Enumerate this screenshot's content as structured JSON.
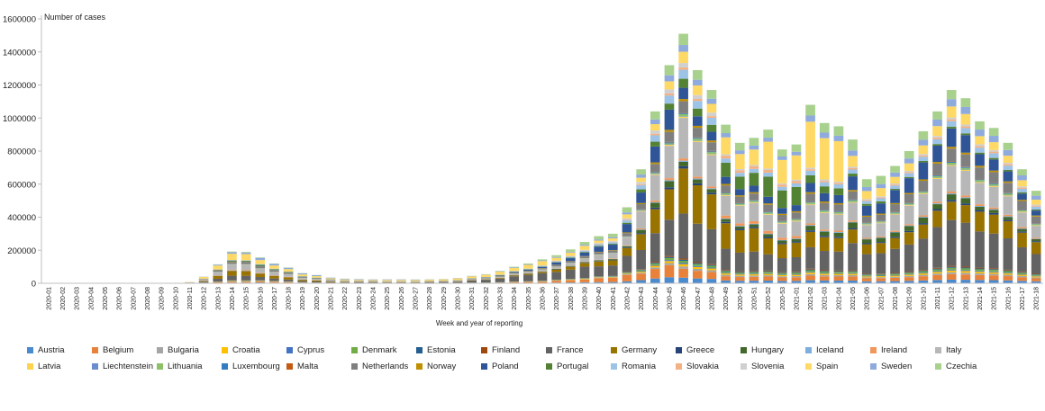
{
  "chart_data": {
    "type": "bar",
    "stacked": true,
    "ylabel": "Number of cases",
    "xlabel": "Week and year of reporting",
    "ylim": [
      0,
      1600000
    ],
    "yticks": [
      0,
      200000,
      400000,
      600000,
      800000,
      1000000,
      1200000,
      1400000,
      1600000
    ],
    "ytick_labels": [
      "0",
      "200000",
      "400000",
      "600000",
      "800000",
      "1000000",
      "1200000",
      "1400000",
      "1600000"
    ],
    "legend_position": "bottom",
    "grid": false,
    "categories": [
      "2020-01",
      "2020-02",
      "2020-03",
      "2020-04",
      "2020-05",
      "2020-06",
      "2020-07",
      "2020-08",
      "2020-09",
      "2020-10",
      "2020-11",
      "2020-12",
      "2020-13",
      "2020-14",
      "2020-15",
      "2020-16",
      "2020-17",
      "2020-18",
      "2020-19",
      "2020-20",
      "2020-21",
      "2020-22",
      "2020-23",
      "2020-24",
      "2020-25",
      "2020-26",
      "2020-27",
      "2020-28",
      "2020-29",
      "2020-30",
      "2020-31",
      "2020-32",
      "2020-33",
      "2020-34",
      "2020-35",
      "2020-36",
      "2020-37",
      "2020-38",
      "2020-39",
      "2020-40",
      "2020-41",
      "2020-42",
      "2020-43",
      "2020-44",
      "2020-45",
      "2020-46",
      "2020-47",
      "2020-48",
      "2020-49",
      "2020-50",
      "2020-51",
      "2020-52",
      "2020-53",
      "2021-01",
      "2021-02",
      "2021-03",
      "2021-04",
      "2021-05",
      "2021-06",
      "2021-07",
      "2021-08",
      "2021-09",
      "2021-10",
      "2021-11",
      "2021-12",
      "2021-13",
      "2021-14",
      "2021-15",
      "2021-16",
      "2021-17",
      "2021-18"
    ],
    "totals": [
      0,
      0,
      0,
      0,
      0,
      0,
      0,
      0,
      0,
      0,
      8000,
      40000,
      115000,
      192000,
      190000,
      157000,
      120000,
      96000,
      62000,
      50000,
      35000,
      28000,
      25000,
      24000,
      24000,
      24000,
      23000,
      24000,
      26000,
      32000,
      45000,
      55000,
      75000,
      100000,
      120000,
      145000,
      170000,
      205000,
      250000,
      285000,
      300000,
      460000,
      690000,
      1040000,
      1320000,
      1510000,
      1290000,
      1170000,
      960000,
      850000,
      880000,
      930000,
      810000,
      840000,
      1080000,
      970000,
      950000,
      870000,
      630000,
      650000,
      710000,
      800000,
      920000,
      1040000,
      1170000,
      1120000,
      980000,
      940000,
      850000,
      690000,
      560000
    ],
    "series": [
      {
        "name": "Austria",
        "color": "#4a8bd0",
        "shares": [
          0.02,
          0.02,
          0.03,
          0.02,
          0.03,
          0.02,
          0.02,
          0.02,
          0.02,
          0.03,
          0.03,
          0.03,
          0.025,
          0.02,
          0.02,
          0.02,
          0.02,
          0.02,
          0.02,
          0.02,
          0.02
        ]
      },
      {
        "name": "Belgium",
        "color": "#e8823a",
        "shares": [
          0.03,
          0.03,
          0.04,
          0.03,
          0.03,
          0.03,
          0.03,
          0.03,
          0.05,
          0.08,
          0.1,
          0.06,
          0.04,
          0.03,
          0.03,
          0.03,
          0.03,
          0.03,
          0.03,
          0.03,
          0.03
        ]
      },
      {
        "name": "Bulgaria",
        "color": "#a5a5a5",
        "shares": [
          0.01,
          0.01,
          0.01,
          0.01,
          0.01,
          0.01,
          0.01,
          0.01,
          0.01,
          0.01,
          0.01,
          0.01,
          0.01,
          0.01,
          0.01,
          0.01,
          0.01,
          0.01,
          0.01,
          0.01,
          0.01
        ]
      },
      {
        "name": "Croatia",
        "color": "#ffc000",
        "shares": [
          0.01,
          0.01,
          0.01,
          0.01,
          0.01,
          0.01,
          0.01,
          0.01,
          0.01,
          0.01,
          0.01,
          0.01,
          0.01,
          0.01,
          0.01,
          0.01,
          0.01,
          0.01,
          0.01,
          0.01,
          0.01
        ]
      },
      {
        "name": "Cyprus",
        "color": "#4472c4",
        "shares": [
          0.005,
          0.005,
          0.005,
          0.005,
          0.005,
          0.005,
          0.005,
          0.005,
          0.005,
          0.005,
          0.005,
          0.005,
          0.005,
          0.005,
          0.005,
          0.005,
          0.005,
          0.005,
          0.005,
          0.005,
          0.005
        ]
      },
      {
        "name": "Denmark",
        "color": "#70ad47",
        "shares": [
          0.01,
          0.01,
          0.01,
          0.01,
          0.01,
          0.01,
          0.01,
          0.01,
          0.01,
          0.01,
          0.01,
          0.01,
          0.01,
          0.01,
          0.01,
          0.01,
          0.01,
          0.01,
          0.01,
          0.01,
          0.01
        ]
      },
      {
        "name": "Estonia",
        "color": "#255e91",
        "shares": [
          0.005,
          0.005,
          0.005,
          0.005,
          0.005,
          0.005,
          0.005,
          0.005,
          0.005,
          0.005,
          0.005,
          0.005,
          0.005,
          0.005,
          0.005,
          0.005,
          0.005,
          0.005,
          0.005,
          0.005,
          0.005
        ]
      },
      {
        "name": "Finland",
        "color": "#9e480e",
        "shares": [
          0.005,
          0.005,
          0.005,
          0.005,
          0.005,
          0.005,
          0.005,
          0.005,
          0.005,
          0.005,
          0.005,
          0.005,
          0.005,
          0.005,
          0.005,
          0.005,
          0.005,
          0.005,
          0.005,
          0.005,
          0.005
        ]
      },
      {
        "name": "France",
        "color": "#636363",
        "shares": [
          0.15,
          0.15,
          0.12,
          0.1,
          0.1,
          0.1,
          0.2,
          0.3,
          0.35,
          0.33,
          0.25,
          0.18,
          0.2,
          0.15,
          0.12,
          0.14,
          0.2,
          0.22,
          0.25,
          0.22,
          0.2
        ]
      },
      {
        "name": "Germany",
        "color": "#997300",
        "shares": [
          0.12,
          0.15,
          0.12,
          0.1,
          0.08,
          0.06,
          0.06,
          0.05,
          0.06,
          0.1,
          0.12,
          0.15,
          0.2,
          0.18,
          0.12,
          0.1,
          0.1,
          0.1,
          0.1,
          0.12,
          0.12
        ]
      },
      {
        "name": "Greece",
        "color": "#264478",
        "shares": [
          0.005,
          0.005,
          0.005,
          0.005,
          0.005,
          0.005,
          0.005,
          0.005,
          0.01,
          0.01,
          0.01,
          0.01,
          0.01,
          0.01,
          0.01,
          0.01,
          0.01,
          0.01,
          0.01,
          0.01,
          0.01
        ]
      },
      {
        "name": "Hungary",
        "color": "#43682b",
        "shares": [
          0.005,
          0.005,
          0.005,
          0.005,
          0.005,
          0.005,
          0.005,
          0.005,
          0.01,
          0.02,
          0.02,
          0.03,
          0.02,
          0.02,
          0.02,
          0.03,
          0.04,
          0.04,
          0.03,
          0.02,
          0.02
        ]
      },
      {
        "name": "Iceland",
        "color": "#7cafdd",
        "shares": [
          0.005,
          0.005,
          0.005,
          0.005,
          0.005,
          0.005,
          0.005,
          0.005,
          0.005,
          0.005,
          0.005,
          0.005,
          0.005,
          0.005,
          0.005,
          0.005,
          0.005,
          0.005,
          0.005,
          0.005,
          0.005
        ]
      },
      {
        "name": "Ireland",
        "color": "#f1975a",
        "shares": [
          0.02,
          0.02,
          0.02,
          0.02,
          0.02,
          0.02,
          0.02,
          0.02,
          0.01,
          0.01,
          0.01,
          0.01,
          0.01,
          0.02,
          0.02,
          0.01,
          0.01,
          0.01,
          0.01,
          0.01,
          0.01
        ]
      },
      {
        "name": "Italy",
        "color": "#b7b7b7",
        "shares": [
          0.2,
          0.18,
          0.15,
          0.12,
          0.1,
          0.06,
          0.05,
          0.05,
          0.06,
          0.08,
          0.12,
          0.16,
          0.18,
          0.14,
          0.12,
          0.12,
          0.13,
          0.15,
          0.14,
          0.13,
          0.12
        ]
      },
      {
        "name": "Latvia",
        "color": "#ffd34d",
        "shares": [
          0.005,
          0.005,
          0.005,
          0.005,
          0.005,
          0.005,
          0.005,
          0.005,
          0.005,
          0.005,
          0.005,
          0.005,
          0.005,
          0.005,
          0.005,
          0.005,
          0.005,
          0.005,
          0.005,
          0.005,
          0.005
        ]
      },
      {
        "name": "Liechtenstein",
        "color": "#698ed0",
        "shares": [
          0.002,
          0.002,
          0.002,
          0.002,
          0.002,
          0.002,
          0.002,
          0.002,
          0.002,
          0.002,
          0.002,
          0.002,
          0.002,
          0.002,
          0.002,
          0.002,
          0.002,
          0.002,
          0.002,
          0.002,
          0.002
        ]
      },
      {
        "name": "Lithuania",
        "color": "#8cc168",
        "shares": [
          0.005,
          0.005,
          0.005,
          0.005,
          0.005,
          0.005,
          0.005,
          0.005,
          0.005,
          0.005,
          0.005,
          0.005,
          0.01,
          0.01,
          0.01,
          0.01,
          0.01,
          0.01,
          0.01,
          0.01,
          0.01
        ]
      },
      {
        "name": "Luxembourg",
        "color": "#327dc2",
        "shares": [
          0.005,
          0.005,
          0.005,
          0.005,
          0.005,
          0.005,
          0.005,
          0.005,
          0.005,
          0.005,
          0.005,
          0.005,
          0.005,
          0.005,
          0.005,
          0.005,
          0.005,
          0.005,
          0.005,
          0.005,
          0.005
        ]
      },
      {
        "name": "Malta",
        "color": "#c55a11",
        "shares": [
          0.002,
          0.002,
          0.002,
          0.002,
          0.002,
          0.002,
          0.002,
          0.002,
          0.002,
          0.002,
          0.002,
          0.002,
          0.002,
          0.002,
          0.002,
          0.002,
          0.002,
          0.002,
          0.002,
          0.002,
          0.002
        ]
      },
      {
        "name": "Netherlands",
        "color": "#7f7f7f",
        "shares": [
          0.06,
          0.06,
          0.06,
          0.05,
          0.05,
          0.05,
          0.05,
          0.05,
          0.05,
          0.05,
          0.05,
          0.05,
          0.05,
          0.05,
          0.05,
          0.05,
          0.06,
          0.07,
          0.07,
          0.07,
          0.07
        ]
      },
      {
        "name": "Norway",
        "color": "#bf9000",
        "shares": [
          0.01,
          0.01,
          0.01,
          0.01,
          0.01,
          0.01,
          0.01,
          0.01,
          0.01,
          0.01,
          0.01,
          0.01,
          0.01,
          0.01,
          0.01,
          0.01,
          0.01,
          0.01,
          0.01,
          0.01,
          0.01
        ]
      },
      {
        "name": "Poland",
        "color": "#2f5597",
        "shares": [
          0.01,
          0.01,
          0.02,
          0.03,
          0.03,
          0.03,
          0.03,
          0.04,
          0.05,
          0.1,
          0.13,
          0.1,
          0.05,
          0.05,
          0.05,
          0.06,
          0.1,
          0.12,
          0.1,
          0.07,
          0.05
        ]
      },
      {
        "name": "Portugal",
        "color": "#548235",
        "shares": [
          0.02,
          0.03,
          0.04,
          0.03,
          0.03,
          0.03,
          0.03,
          0.03,
          0.02,
          0.02,
          0.02,
          0.03,
          0.04,
          0.1,
          0.15,
          0.05,
          0.02,
          0.01,
          0.01,
          0.01,
          0.01
        ]
      },
      {
        "name": "Romania",
        "color": "#9dc3e6",
        "shares": [
          0.01,
          0.01,
          0.02,
          0.02,
          0.03,
          0.03,
          0.03,
          0.03,
          0.03,
          0.04,
          0.04,
          0.04,
          0.04,
          0.03,
          0.03,
          0.03,
          0.03,
          0.03,
          0.03,
          0.03,
          0.03
        ]
      },
      {
        "name": "Slovakia",
        "color": "#f4b183",
        "shares": [
          0.002,
          0.002,
          0.002,
          0.002,
          0.002,
          0.002,
          0.002,
          0.002,
          0.005,
          0.01,
          0.01,
          0.01,
          0.01,
          0.02,
          0.02,
          0.01,
          0.01,
          0.01,
          0.01,
          0.01,
          0.01
        ]
      },
      {
        "name": "Slovenia",
        "color": "#d0d0d0",
        "shares": [
          0.005,
          0.005,
          0.005,
          0.005,
          0.005,
          0.005,
          0.005,
          0.005,
          0.01,
          0.01,
          0.02,
          0.02,
          0.02,
          0.01,
          0.01,
          0.01,
          0.01,
          0.01,
          0.01,
          0.01,
          0.01
        ]
      },
      {
        "name": "Spain",
        "color": "#ffd966",
        "shares": [
          0.25,
          0.2,
          0.15,
          0.15,
          0.2,
          0.3,
          0.3,
          0.25,
          0.2,
          0.12,
          0.06,
          0.04,
          0.05,
          0.12,
          0.2,
          0.3,
          0.08,
          0.06,
          0.06,
          0.05,
          0.05
        ]
      },
      {
        "name": "Sweden",
        "color": "#8faadc",
        "shares": [
          0.03,
          0.05,
          0.08,
          0.1,
          0.12,
          0.15,
          0.06,
          0.04,
          0.03,
          0.03,
          0.03,
          0.03,
          0.03,
          0.03,
          0.03,
          0.04,
          0.04,
          0.04,
          0.04,
          0.04,
          0.04
        ]
      },
      {
        "name": "Czechia",
        "color": "#a9d18e",
        "shares": [
          0.01,
          0.02,
          0.02,
          0.02,
          0.02,
          0.02,
          0.02,
          0.03,
          0.05,
          0.08,
          0.08,
          0.05,
          0.05,
          0.06,
          0.06,
          0.07,
          0.08,
          0.06,
          0.05,
          0.05,
          0.05
        ]
      }
    ]
  }
}
